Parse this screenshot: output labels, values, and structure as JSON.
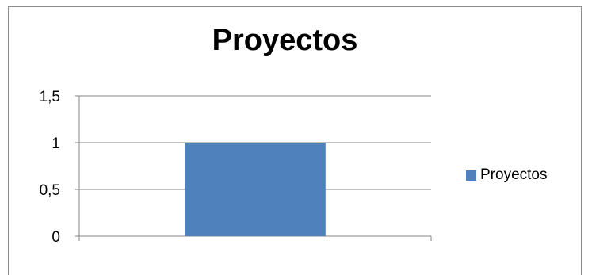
{
  "chart_data": {
    "type": "bar",
    "title": "Proyectos",
    "categories": [
      ""
    ],
    "series": [
      {
        "name": "Proyectos",
        "values": [
          1
        ]
      }
    ],
    "ylim": [
      0,
      1.5
    ],
    "yticks": [
      "0",
      "0,5",
      "1",
      "1,5"
    ],
    "ytick_values": [
      0,
      0.5,
      1,
      1.5
    ],
    "grid": true,
    "legend_position": "right",
    "colors": {
      "series": "#4f81bd",
      "grid": "#868686",
      "axis": "#868686"
    }
  }
}
